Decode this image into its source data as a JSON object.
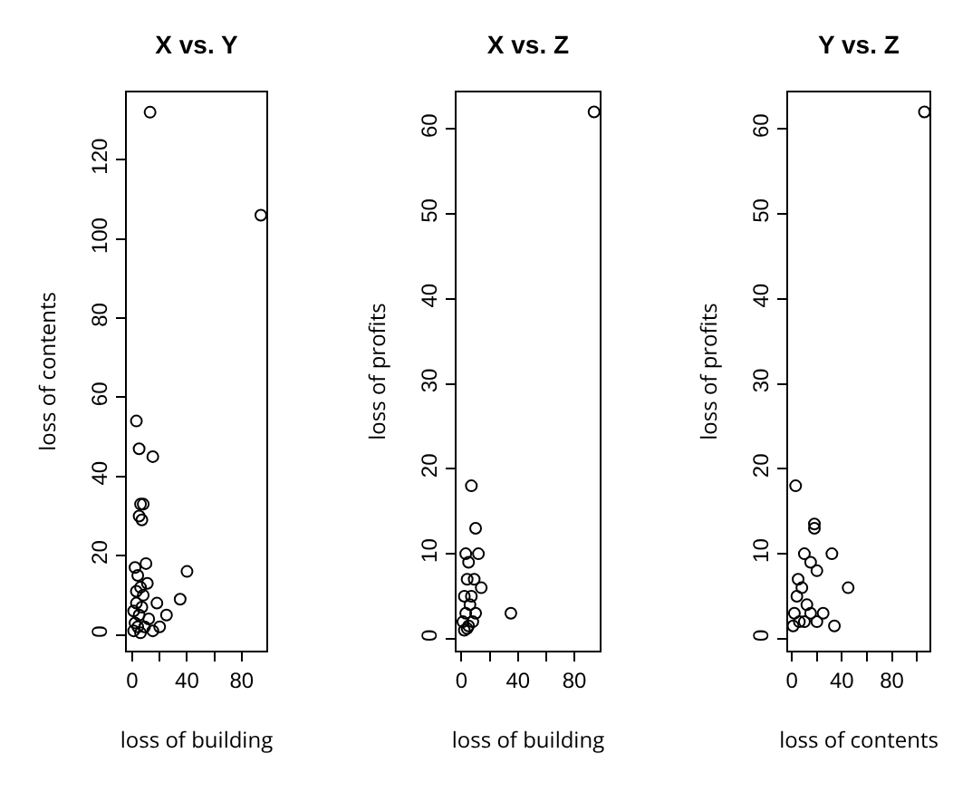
{
  "chart_data": [
    {
      "type": "scatter",
      "title": "X vs. Y",
      "xlabel": "loss of building",
      "ylabel": "loss of contents",
      "marker": "circle",
      "grid": false,
      "xlim": [
        -4,
        98
      ],
      "ylim": [
        -4,
        137
      ],
      "xticks": [
        0,
        {
          "value": 20,
          "label": null
        },
        40,
        {
          "value": 60,
          "label": null
        },
        80
      ],
      "yticks": [
        0,
        20,
        40,
        60,
        80,
        100,
        120
      ],
      "series": [
        {
          "color": "#000000",
          "x": [
            94,
            13,
            3,
            5,
            15,
            6,
            8,
            5,
            7,
            40,
            35,
            25,
            18,
            10,
            2,
            4,
            6,
            8,
            3,
            1,
            5,
            2,
            9,
            12,
            15,
            1,
            4,
            7,
            11,
            3,
            20,
            6
          ],
          "values": [
            106,
            132,
            54,
            47,
            45,
            33,
            33,
            30,
            29,
            16,
            9,
            5,
            8,
            18,
            17,
            15,
            12,
            10,
            8,
            6,
            5,
            3,
            2,
            4,
            1,
            1,
            2,
            7,
            13,
            11,
            2,
            0.5
          ]
        }
      ]
    },
    {
      "type": "scatter",
      "title": "X vs. Z",
      "xlabel": "loss of building",
      "ylabel": "loss of profits",
      "marker": "circle",
      "grid": false,
      "xlim": [
        -3.5,
        98
      ],
      "ylim": [
        -1.4,
        64.3
      ],
      "xticks": [
        0,
        {
          "value": 20,
          "label": null
        },
        40,
        {
          "value": 60,
          "label": null
        },
        80
      ],
      "yticks": [
        0,
        10,
        20,
        30,
        40,
        50,
        60
      ],
      "series": [
        {
          "color": "#000000",
          "x": [
            94,
            7,
            10,
            3,
            5,
            12,
            14,
            35,
            9,
            4,
            2,
            6,
            3,
            8,
            1,
            5,
            10,
            2,
            7,
            4
          ],
          "values": [
            62,
            18,
            13,
            10,
            9,
            10,
            6,
            3,
            7,
            7,
            5,
            4,
            3,
            2,
            2,
            1.5,
            3,
            1,
            5,
            1.2
          ]
        }
      ]
    },
    {
      "type": "scatter",
      "title": "Y vs. Z",
      "xlabel": "loss of contents",
      "ylabel": "loss of profits",
      "marker": "circle",
      "grid": false,
      "xlim": [
        -3,
        110
      ],
      "ylim": [
        -1.4,
        64.3
      ],
      "xticks": [
        0,
        {
          "value": 20,
          "label": null
        },
        40,
        {
          "value": 60,
          "label": null
        },
        80,
        {
          "value": 100,
          "label": null
        }
      ],
      "yticks": [
        0,
        10,
        20,
        30,
        40,
        50,
        60
      ],
      "series": [
        {
          "color": "#000000",
          "x": [
            106,
            3,
            18,
            18,
            32,
            10,
            45,
            34,
            15,
            20,
            5,
            8,
            12,
            2,
            6,
            10,
            15,
            20,
            1,
            4,
            25
          ],
          "values": [
            62,
            18,
            13.5,
            13,
            10,
            10,
            6,
            1.5,
            9,
            8,
            7,
            6,
            4,
            3,
            2,
            2,
            3,
            2,
            1.5,
            5,
            3
          ]
        }
      ]
    }
  ]
}
